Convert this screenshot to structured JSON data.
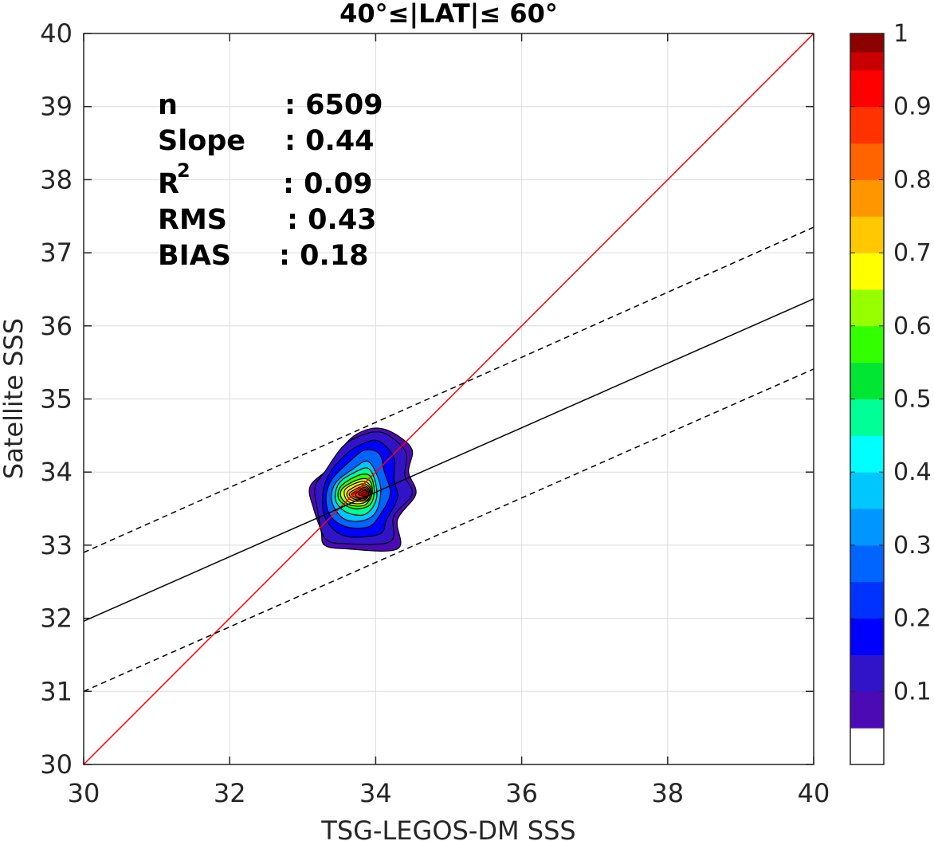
{
  "chart_data": {
    "type": "heatmap",
    "title": "40°≤|LAT|≤ 60°",
    "xlabel": "TSG-LEGOS-DM SSS",
    "ylabel": "Satellite SSS",
    "xlim": [
      30,
      40
    ],
    "ylim": [
      30,
      40
    ],
    "xticks": [
      "30",
      "32",
      "34",
      "36",
      "38",
      "40"
    ],
    "yticks": [
      "30",
      "31",
      "32",
      "33",
      "34",
      "35",
      "36",
      "37",
      "38",
      "39",
      "40"
    ],
    "grid": true,
    "stats": [
      {
        "label": "n",
        "value": ": 6509"
      },
      {
        "label": "Slope",
        "value": ": 0.44"
      },
      {
        "label": "R",
        "sup": "2",
        "value": ": 0.09"
      },
      {
        "label": "RMS",
        "value": ": 0.43"
      },
      {
        "label": "BIAS",
        "value": ": 0.18"
      }
    ],
    "lines": [
      {
        "name": "identity",
        "color": "#ff0000",
        "style": "solid",
        "points": [
          [
            30,
            30
          ],
          [
            40,
            40
          ]
        ]
      },
      {
        "name": "regression",
        "color": "#000000",
        "style": "solid",
        "points": [
          [
            30,
            31.96
          ],
          [
            40,
            36.37
          ]
        ]
      },
      {
        "name": "upper-bound",
        "color": "#000000",
        "style": "dashed",
        "points": [
          [
            30,
            32.9
          ],
          [
            40,
            37.35
          ]
        ]
      },
      {
        "name": "lower-bound",
        "color": "#000000",
        "style": "dashed",
        "points": [
          [
            30,
            31.0
          ],
          [
            40,
            35.41
          ]
        ]
      }
    ],
    "density_peak": {
      "x": 33.85,
      "y": 33.7
    },
    "contour_levels": [
      {
        "level": 0.05,
        "color": "#4b0ab4",
        "points": [
          [
            33.35,
            34.05
          ],
          [
            33.6,
            34.4
          ],
          [
            33.8,
            34.55
          ],
          [
            34.05,
            34.6
          ],
          [
            34.3,
            34.5
          ],
          [
            34.5,
            34.3
          ],
          [
            34.45,
            34.0
          ],
          [
            34.55,
            33.7
          ],
          [
            34.3,
            33.35
          ],
          [
            34.3,
            32.95
          ],
          [
            33.6,
            32.95
          ],
          [
            33.3,
            33.0
          ],
          [
            33.25,
            33.2
          ],
          [
            33.15,
            33.5
          ],
          [
            33.1,
            33.8
          ]
        ]
      },
      {
        "level": 0.1,
        "color": "#3214c8",
        "points": [
          [
            33.3,
            34.0
          ],
          [
            33.55,
            34.35
          ],
          [
            33.8,
            34.5
          ],
          [
            34.05,
            34.55
          ],
          [
            34.25,
            34.45
          ],
          [
            34.42,
            34.25
          ],
          [
            34.4,
            33.95
          ],
          [
            34.5,
            33.7
          ],
          [
            34.25,
            33.4
          ],
          [
            34.2,
            33.05
          ],
          [
            33.6,
            33.02
          ],
          [
            33.3,
            33.1
          ],
          [
            33.2,
            33.5
          ],
          [
            33.17,
            33.8
          ]
        ]
      },
      {
        "level": 0.15,
        "color": "#0000ff",
        "points": [
          [
            33.35,
            33.95
          ],
          [
            33.6,
            34.25
          ],
          [
            33.85,
            34.4
          ],
          [
            34.05,
            34.42
          ],
          [
            34.25,
            34.2
          ],
          [
            34.25,
            33.9
          ],
          [
            34.3,
            33.65
          ],
          [
            34.15,
            33.35
          ],
          [
            34.05,
            33.15
          ],
          [
            33.6,
            33.12
          ],
          [
            33.35,
            33.3
          ],
          [
            33.27,
            33.6
          ]
        ]
      },
      {
        "level": 0.25,
        "color": "#0064ff",
        "points": [
          [
            33.4,
            33.9
          ],
          [
            33.65,
            34.15
          ],
          [
            33.85,
            34.3
          ],
          [
            34.05,
            34.25
          ],
          [
            34.12,
            34.0
          ],
          [
            34.2,
            33.7
          ],
          [
            34.05,
            33.4
          ],
          [
            33.9,
            33.25
          ],
          [
            33.6,
            33.25
          ],
          [
            33.38,
            33.4
          ],
          [
            33.32,
            33.65
          ]
        ]
      },
      {
        "level": 0.35,
        "color": "#00c8ff",
        "points": [
          [
            33.45,
            33.85
          ],
          [
            33.7,
            34.05
          ],
          [
            33.88,
            34.15
          ],
          [
            34.0,
            34.0
          ],
          [
            34.07,
            33.75
          ],
          [
            34.0,
            33.45
          ],
          [
            33.8,
            33.33
          ],
          [
            33.55,
            33.37
          ],
          [
            33.4,
            33.6
          ]
        ]
      },
      {
        "level": 0.45,
        "color": "#00ff96",
        "points": [
          [
            33.5,
            33.85
          ],
          [
            33.72,
            34.0
          ],
          [
            33.9,
            34.05
          ],
          [
            34.0,
            33.85
          ],
          [
            34.0,
            33.6
          ],
          [
            33.85,
            33.42
          ],
          [
            33.6,
            33.45
          ],
          [
            33.45,
            33.62
          ]
        ]
      },
      {
        "level": 0.55,
        "color": "#32ff00",
        "points": [
          [
            33.52,
            33.8
          ],
          [
            33.75,
            33.95
          ],
          [
            33.92,
            33.95
          ],
          [
            33.98,
            33.75
          ],
          [
            33.92,
            33.55
          ],
          [
            33.7,
            33.5
          ],
          [
            33.5,
            33.62
          ]
        ]
      },
      {
        "level": 0.6,
        "color": "#c8ff00",
        "points": [
          [
            33.55,
            33.78
          ],
          [
            33.77,
            33.9
          ],
          [
            33.92,
            33.88
          ],
          [
            33.95,
            33.7
          ],
          [
            33.85,
            33.55
          ],
          [
            33.65,
            33.55
          ],
          [
            33.53,
            33.65
          ]
        ]
      },
      {
        "level": 0.65,
        "color": "#ffff00",
        "points": [
          [
            33.58,
            33.76
          ],
          [
            33.8,
            33.87
          ],
          [
            33.92,
            33.82
          ],
          [
            33.93,
            33.65
          ],
          [
            33.8,
            33.57
          ],
          [
            33.62,
            33.6
          ]
        ]
      },
      {
        "level": 0.7,
        "color": "#ffc800",
        "points": [
          [
            33.62,
            33.74
          ],
          [
            33.82,
            33.84
          ],
          [
            33.92,
            33.78
          ],
          [
            33.9,
            33.63
          ],
          [
            33.75,
            33.6
          ],
          [
            33.63,
            33.64
          ]
        ]
      },
      {
        "level": 0.75,
        "color": "#ff9600",
        "points": [
          [
            33.65,
            33.72
          ],
          [
            33.83,
            33.81
          ],
          [
            33.91,
            33.76
          ],
          [
            33.88,
            33.64
          ],
          [
            33.75,
            33.62
          ],
          [
            33.66,
            33.66
          ]
        ]
      },
      {
        "level": 0.8,
        "color": "#ff6400",
        "points": [
          [
            33.68,
            33.71
          ],
          [
            33.84,
            33.79
          ],
          [
            33.9,
            33.74
          ],
          [
            33.87,
            33.65
          ],
          [
            33.76,
            33.64
          ],
          [
            33.69,
            33.67
          ]
        ]
      },
      {
        "level": 0.85,
        "color": "#ff3200",
        "points": [
          [
            33.72,
            33.7
          ],
          [
            33.84,
            33.77
          ],
          [
            33.89,
            33.72
          ],
          [
            33.86,
            33.66
          ],
          [
            33.77,
            33.65
          ]
        ]
      },
      {
        "level": 0.9,
        "color": "#dc0000",
        "points": [
          [
            33.76,
            33.7
          ],
          [
            33.85,
            33.75
          ],
          [
            33.88,
            33.7
          ],
          [
            33.84,
            33.67
          ]
        ]
      }
    ],
    "colorbar": {
      "range": [
        0,
        1
      ],
      "ticks": [
        "0.1",
        "0.2",
        "0.3",
        "0.4",
        "0.5",
        "0.6",
        "0.7",
        "0.8",
        "0.9",
        "1"
      ],
      "tick_values": [
        0.1,
        0.2,
        0.3,
        0.4,
        0.5,
        0.6,
        0.7,
        0.8,
        0.9,
        1.0
      ],
      "bands": [
        {
          "from": 0.0,
          "to": 0.05,
          "color": "#ffffff"
        },
        {
          "from": 0.05,
          "to": 0.1,
          "color": "#4b0ab4"
        },
        {
          "from": 0.1,
          "to": 0.15,
          "color": "#3214c8"
        },
        {
          "from": 0.15,
          "to": 0.2,
          "color": "#0000ff"
        },
        {
          "from": 0.2,
          "to": 0.25,
          "color": "#0032ff"
        },
        {
          "from": 0.25,
          "to": 0.3,
          "color": "#0064ff"
        },
        {
          "from": 0.3,
          "to": 0.35,
          "color": "#0096ff"
        },
        {
          "from": 0.35,
          "to": 0.4,
          "color": "#00c8ff"
        },
        {
          "from": 0.4,
          "to": 0.45,
          "color": "#00ffff"
        },
        {
          "from": 0.45,
          "to": 0.5,
          "color": "#00ff96"
        },
        {
          "from": 0.5,
          "to": 0.55,
          "color": "#00e632"
        },
        {
          "from": 0.55,
          "to": 0.6,
          "color": "#32ff00"
        },
        {
          "from": 0.6,
          "to": 0.65,
          "color": "#96ff00"
        },
        {
          "from": 0.65,
          "to": 0.7,
          "color": "#ffff00"
        },
        {
          "from": 0.7,
          "to": 0.75,
          "color": "#ffc800"
        },
        {
          "from": 0.75,
          "to": 0.8,
          "color": "#ff9600"
        },
        {
          "from": 0.8,
          "to": 0.85,
          "color": "#ff6400"
        },
        {
          "from": 0.85,
          "to": 0.9,
          "color": "#ff3200"
        },
        {
          "from": 0.9,
          "to": 0.95,
          "color": "#ff0000"
        },
        {
          "from": 0.95,
          "to": 0.975,
          "color": "#c80000"
        },
        {
          "from": 0.975,
          "to": 1.0,
          "color": "#8c0000"
        }
      ]
    }
  }
}
